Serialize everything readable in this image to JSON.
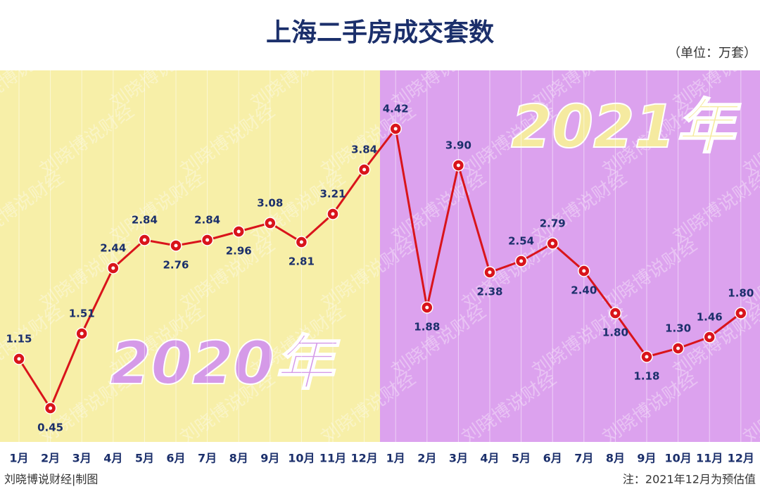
{
  "title": "上海二手房成交套数",
  "unit": "（单位：万套）",
  "watermark": "刘晓博说财经",
  "source": "刘晓博说财经|制图",
  "note": "注：2021年12月为预估值",
  "chart_data": {
    "type": "line",
    "categories": [
      "1月",
      "2月",
      "3月",
      "4月",
      "5月",
      "6月",
      "7月",
      "8月",
      "9月",
      "10月",
      "11月",
      "12月",
      "1月",
      "2月",
      "3月",
      "4月",
      "5月",
      "6月",
      "7月",
      "8月",
      "9月",
      "10月",
      "11月",
      "12月"
    ],
    "values": [
      1.15,
      0.45,
      1.51,
      2.44,
      2.84,
      2.76,
      2.84,
      2.96,
      3.08,
      2.81,
      3.21,
      3.84,
      4.42,
      1.88,
      3.9,
      2.38,
      2.54,
      2.79,
      2.4,
      1.8,
      1.18,
      1.3,
      1.46,
      1.8
    ],
    "value_labels": [
      "1.15",
      "0.45",
      "1.51",
      "2.44",
      "2.84",
      "2.76",
      "2.84",
      "2.96",
      "3.08",
      "2.81",
      "3.21",
      "3.84",
      "4.42",
      "1.88",
      "3.90",
      "2.38",
      "2.54",
      "2.79",
      "2.40",
      "1.80",
      "1.18",
      "1.30",
      "1.46",
      "1.80"
    ],
    "color": "#d9141b",
    "annotations": [
      "2020年",
      "2021年"
    ]
  }
}
